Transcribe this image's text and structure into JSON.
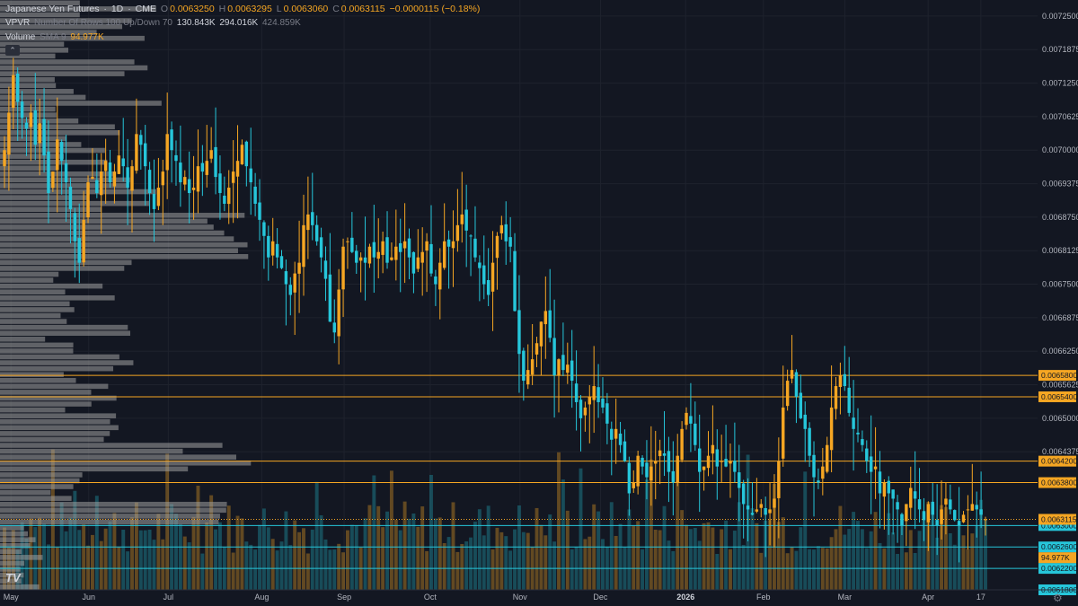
{
  "header": {
    "symbol": "Japanese Yen Futures",
    "interval": "1D",
    "exchange": "CME",
    "sep1": "·",
    "sep2": "·",
    "open_label": "O",
    "open": "0.0063250",
    "high_label": "H",
    "high": "0.0063295",
    "low_label": "L",
    "low": "0.0063060",
    "close_label": "C",
    "close": "0.0063115",
    "change": "−0.0000115 (−0.18%)"
  },
  "vpvr_legend": {
    "name": "VPVR",
    "params": "Number Of Rows 100 Up/Down 70",
    "v1": "130.843K",
    "v2": "294.016K",
    "v3": "424.859K"
  },
  "volume_legend": {
    "name": "Volume",
    "params": "SMA 9",
    "value": "94.977K"
  },
  "collapse_icon": "chevron-up",
  "logo_text": "TV",
  "colors": {
    "background": "#131722",
    "up": "#f5a623",
    "down": "#26c6da",
    "level_orange": "#f5a623",
    "level_cyan": "#26c6da",
    "profile": "#9a9a9a",
    "grid": "#1e222d"
  },
  "chart_data": {
    "type": "candlestick",
    "title": "Japanese Yen Futures · 1D · CME",
    "ylim": [
      0.00618,
      0.00728
    ],
    "y_ticks": [
      "0.0072500",
      "0.0071875",
      "0.0071250",
      "0.0070625",
      "0.0070000",
      "0.0069375",
      "0.0068750",
      "0.0068125",
      "0.0067500",
      "0.0066875",
      "0.0066250",
      "0.0065625",
      "0.0065000",
      "0.0064375"
    ],
    "y_tick_values": [
      0.00725,
      0.0071875,
      0.007125,
      0.0070625,
      0.007,
      0.0069375,
      0.006875,
      0.0068125,
      0.00675,
      0.0066875,
      0.006625,
      0.0065625,
      0.0065,
      0.0064375
    ],
    "x_labels": [
      "May",
      "Jun",
      "Jul",
      "Aug",
      "Sep",
      "Oct",
      "Nov",
      "Dec",
      "2026",
      "Feb",
      "Mar",
      "Apr",
      "17"
    ],
    "x_label_positions": [
      0.7,
      9.1,
      17.7,
      27.8,
      36.7,
      46.0,
      55.7,
      64.4,
      73.6,
      82.0,
      90.8,
      99.8,
      105.5
    ],
    "horizontal_levels": [
      {
        "value": 0.00658,
        "label": "0.0065800",
        "color": "#f5a623"
      },
      {
        "value": 0.00654,
        "label": "0.0065400",
        "color": "#f5a623"
      },
      {
        "value": 0.00642,
        "label": "0.0064200",
        "color": "#f5a623"
      },
      {
        "value": 0.00638,
        "label": "0.0063800",
        "color": "#f5a623"
      },
      {
        "value": 0.0063,
        "label": "0.0063000",
        "color": "#26c6da"
      },
      {
        "value": 0.00626,
        "label": "0.0062600",
        "color": "#26c6da"
      },
      {
        "value": 0.00622,
        "label": "0.0062200",
        "color": "#26c6da"
      },
      {
        "value": 0.00618,
        "label": "0.0061800",
        "color": "#26c6da"
      }
    ],
    "last_price": {
      "value": 0.0063115,
      "label": "0.0063115"
    },
    "volume_sma_tag": {
      "value": 0.00624,
      "label": "94.977K"
    },
    "close_series": [
      0.007,
      0.00707,
      0.00714,
      0.00709,
      0.00706,
      0.00704,
      0.00707,
      0.00701,
      0.00705,
      0.00699,
      0.00692,
      0.00696,
      0.00702,
      0.00698,
      0.00694,
      0.00689,
      0.00683,
      0.00679,
      0.00687,
      0.00694,
      0.00695,
      0.00692,
      0.00696,
      0.00698,
      0.00694,
      0.00696,
      0.00699,
      0.00697,
      0.00693,
      0.00697,
      0.00703,
      0.00701,
      0.00697,
      0.00692,
      0.00689,
      0.00693,
      0.00696,
      0.00703,
      0.007,
      0.00698,
      0.00694,
      0.00695,
      0.00692,
      0.00693,
      0.00697,
      0.00696,
      0.00698,
      0.007,
      0.00695,
      0.00692,
      0.0069,
      0.00693,
      0.00696,
      0.00698,
      0.00701,
      0.00697,
      0.00694,
      0.0069,
      0.00687,
      0.00684,
      0.0068,
      0.00683,
      0.0068,
      0.00678,
      0.00675,
      0.00673,
      0.00677,
      0.00679,
      0.00686,
      0.00688,
      0.00686,
      0.00683,
      0.0068,
      0.00676,
      0.00668,
      0.00666,
      0.00674,
      0.00682,
      0.00683,
      0.00681,
      0.00679,
      0.0068,
      0.00679,
      0.00682,
      0.0068,
      0.00681,
      0.00683,
      0.00679,
      0.0068,
      0.00682,
      0.00681,
      0.00683,
      0.0068,
      0.00677,
      0.0068,
      0.00681,
      0.00683,
      0.00677,
      0.00675,
      0.00679,
      0.00683,
      0.00682,
      0.00683,
      0.00686,
      0.00688,
      0.00685,
      0.00684,
      0.0068,
      0.00678,
      0.00675,
      0.00673,
      0.00679,
      0.00684,
      0.00686,
      0.00683,
      0.00682,
      0.0067,
      0.00662,
      0.00657,
      0.00659,
      0.00661,
      0.00664,
      0.00668,
      0.0067,
      0.00665,
      0.00658,
      0.00661,
      0.00659,
      0.0066,
      0.00657,
      0.00653,
      0.0065,
      0.00652,
      0.00654,
      0.00656,
      0.00653,
      0.00652,
      0.00649,
      0.00646,
      0.00648,
      0.00645,
      0.00642,
      0.00636,
      0.00638,
      0.00643,
      0.00641,
      0.00639,
      0.00641,
      0.00642,
      0.00644,
      0.00643,
      0.0064,
      0.00638,
      0.00643,
      0.00648,
      0.00651,
      0.00649,
      0.00645,
      0.0064,
      0.00641,
      0.00643,
      0.00645,
      0.00641,
      0.00642,
      0.00641,
      0.00642,
      0.0064,
      0.00637,
      0.00634,
      0.00633,
      0.00632,
      0.00633,
      0.00634,
      0.00632,
      0.00633,
      0.00635,
      0.00642,
      0.00652,
      0.00657,
      0.00659,
      0.00654,
      0.0065,
      0.00648,
      0.00643,
      0.00639,
      0.00638,
      0.00641,
      0.00645,
      0.00652,
      0.00656,
      0.00658,
      0.00656,
      0.00651,
      0.00648,
      0.00647,
      0.00645,
      0.00642,
      0.0064,
      0.00641,
      0.00636,
      0.00638,
      0.00636,
      0.00635,
      0.00633,
      0.0063,
      0.00634,
      0.00637,
      0.00635,
      0.00633,
      0.00631,
      0.00634,
      0.00632,
      0.0063,
      0.00633,
      0.00635,
      0.00633,
      0.00631,
      0.0063,
      0.00632,
      0.00633,
      0.00634,
      0.00633,
      0.00632,
      0.0063115
    ]
  }
}
